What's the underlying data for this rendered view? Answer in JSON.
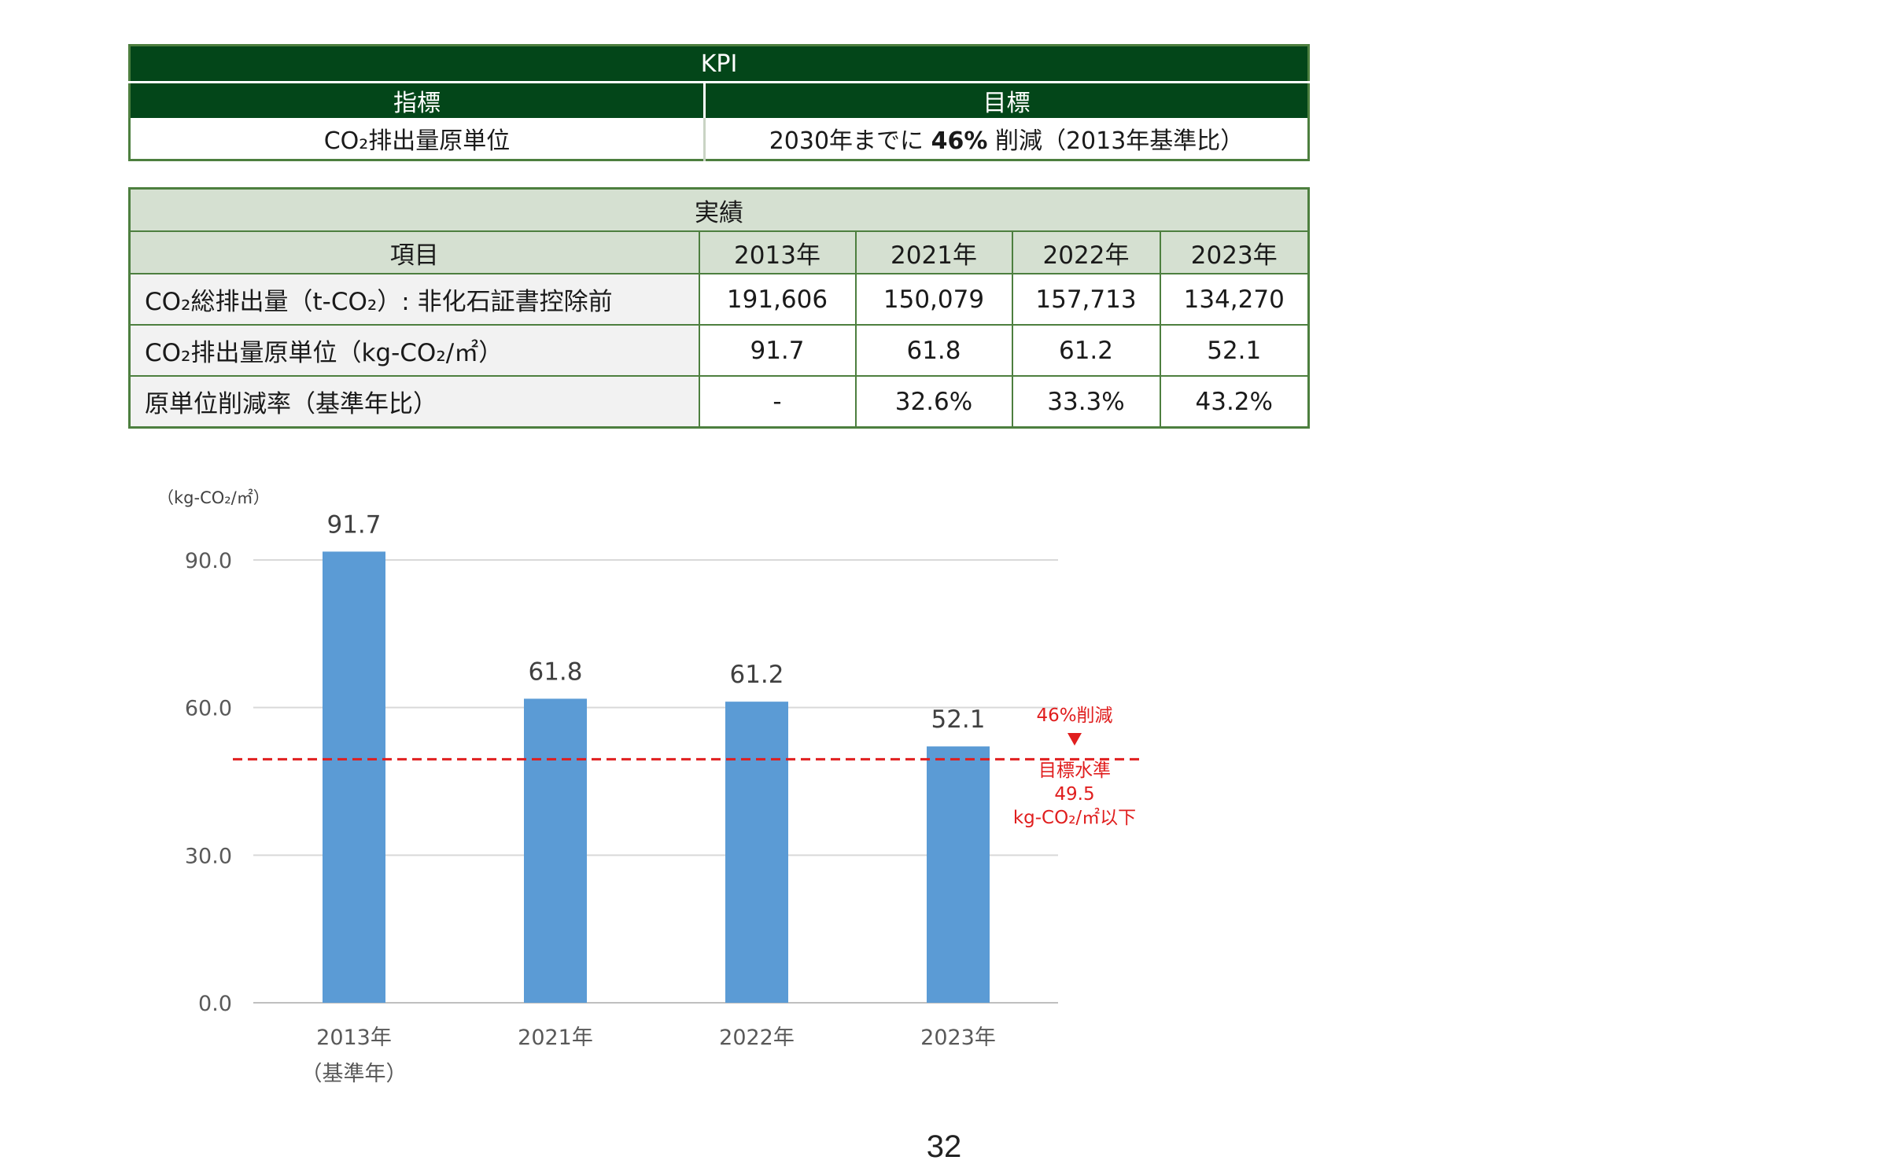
{
  "kpi_table": {
    "title": "KPI",
    "headers": [
      "指標",
      "目標"
    ],
    "indicator": "CO₂排出量原単位",
    "target_prefix": "2030年までに ",
    "target_bold": "46%",
    "target_suffix": " 削減（2013年基準比）"
  },
  "results_table": {
    "title": "実績",
    "headers": [
      "項目",
      "2013年",
      "2021年",
      "2022年",
      "2023年"
    ],
    "rows": [
      {
        "label": "CO₂総排出量（t-CO₂）: 非化石証書控除前",
        "values": [
          "191,606",
          "150,079",
          "157,713",
          "134,270"
        ]
      },
      {
        "label": "CO₂排出量原単位（kg-CO₂/㎡）",
        "values": [
          "91.7",
          "61.8",
          "61.2",
          "52.1"
        ]
      },
      {
        "label": "原単位削減率（基準年比）",
        "values": [
          "-",
          "32.6%",
          "33.3%",
          "43.2%"
        ]
      }
    ]
  },
  "chart_data": {
    "type": "bar",
    "unit_label": "（kg-CO₂/㎡）",
    "categories": [
      "2013年",
      "2021年",
      "2022年",
      "2023年"
    ],
    "category_sublabels": [
      "（基準年）",
      "",
      "",
      ""
    ],
    "values": [
      91.7,
      61.8,
      61.2,
      52.1
    ],
    "data_labels": [
      "91.7",
      "61.8",
      "61.2",
      "52.1"
    ],
    "ylim": [
      0,
      90
    ],
    "yticks": [
      0,
      30,
      60,
      90
    ],
    "ytick_labels": [
      "0.0",
      "30.0",
      "60.0",
      "90.0"
    ],
    "grid": true,
    "bar_color": "#5b9bd5",
    "target_line": {
      "value": 49.5,
      "color": "#e01e1e",
      "style": "dashed",
      "annotation_top": "46%削減",
      "annotation_lines": [
        "目標水準",
        "49.5",
        "kg-CO₂/㎡以下"
      ]
    }
  },
  "page_number": "32"
}
